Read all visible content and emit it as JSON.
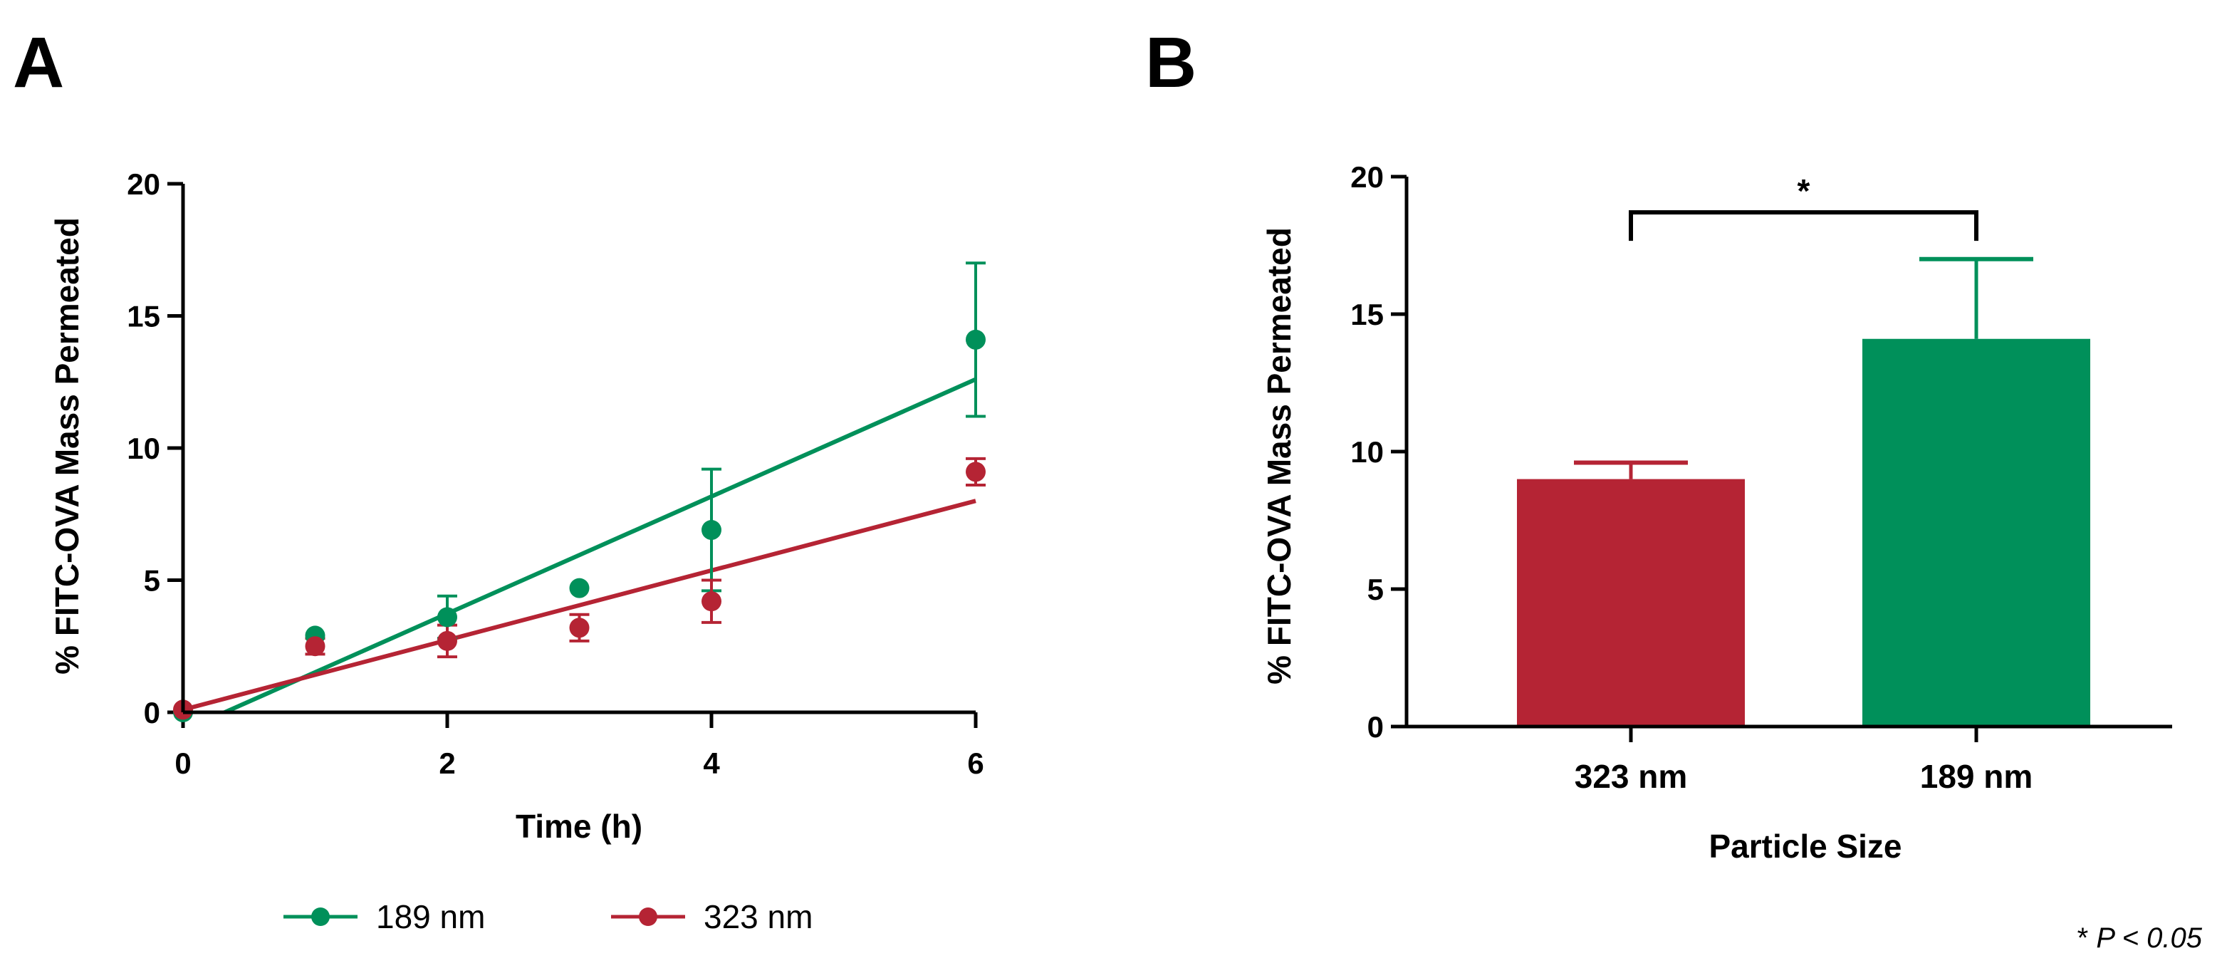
{
  "chart_data": [
    {
      "panel_label": "A",
      "type": "scatter",
      "xlabel": "Time (h)",
      "ylabel": "% FITC-OVA Mass Permeated",
      "xlim": [
        0,
        6
      ],
      "ylim": [
        0,
        20
      ],
      "xticks": [
        "0",
        "2",
        "4",
        "6"
      ],
      "yticks": [
        "0",
        "5",
        "10",
        "15",
        "20"
      ],
      "legend_position": "bottom",
      "series": [
        {
          "name": "189 nm",
          "color": "#00905a",
          "points": [
            {
              "x": 0,
              "y": 0,
              "err": 0
            },
            {
              "x": 1,
              "y": 2.9,
              "err": 0.1
            },
            {
              "x": 2,
              "y": 3.6,
              "err": 0.8
            },
            {
              "x": 3,
              "y": 4.7,
              "err": 0.1
            },
            {
              "x": 4,
              "y": 6.9,
              "err": 2.3
            },
            {
              "x": 6,
              "y": 14.1,
              "err": 2.9
            }
          ],
          "fit_line": [
            {
              "x": 0,
              "y": -0.7
            },
            {
              "x": 6,
              "y": 12.6
            }
          ]
        },
        {
          "name": "323 nm",
          "color": "#b52434",
          "points": [
            {
              "x": 0,
              "y": 0.1,
              "err": 0
            },
            {
              "x": 1,
              "y": 2.5,
              "err": 0.3
            },
            {
              "x": 2,
              "y": 2.7,
              "err": 0.6
            },
            {
              "x": 3,
              "y": 3.2,
              "err": 0.5
            },
            {
              "x": 4,
              "y": 4.2,
              "err": 0.8
            },
            {
              "x": 6,
              "y": 9.1,
              "err": 0.5
            }
          ],
          "fit_line": [
            {
              "x": 0,
              "y": 0.1
            },
            {
              "x": 6,
              "y": 8.0
            }
          ]
        }
      ]
    },
    {
      "panel_label": "B",
      "type": "bar",
      "xlabel": "Particle Size",
      "ylabel": "% FITC-OVA Mass Permeated",
      "ylim": [
        0,
        20
      ],
      "yticks": [
        "0",
        "5",
        "10",
        "15",
        "20"
      ],
      "categories": [
        "323 nm",
        "189 nm"
      ],
      "values": [
        9.0,
        14.1
      ],
      "errors": [
        0.6,
        2.9
      ],
      "colors": [
        "#b52434",
        "#00905a"
      ],
      "significance": {
        "label": "*",
        "between": [
          0,
          1
        ]
      },
      "note": "* P < 0.05"
    }
  ]
}
